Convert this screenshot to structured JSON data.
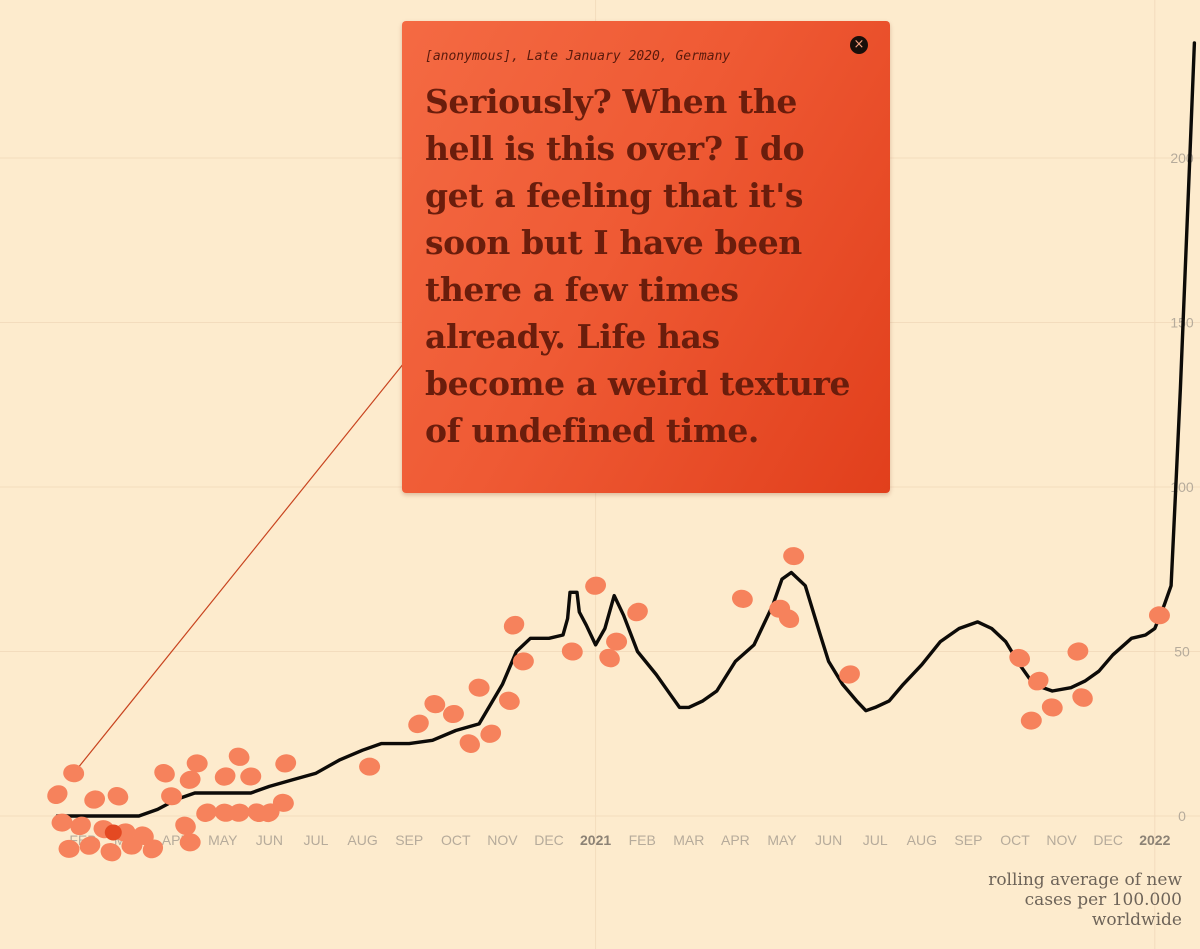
{
  "chart_data": {
    "type": "line",
    "title": "",
    "ylabel": "rolling average of new cases per 100.000 worldwide",
    "caption_lines": [
      "rolling average of new",
      "cases per 100.000",
      "worldwide"
    ],
    "x_ticks": [
      {
        "label": "FEB",
        "bold": false,
        "m": 0
      },
      {
        "label": "MAR",
        "bold": false,
        "m": 1
      },
      {
        "label": "APR",
        "bold": false,
        "m": 2
      },
      {
        "label": "MAY",
        "bold": false,
        "m": 3
      },
      {
        "label": "JUN",
        "bold": false,
        "m": 4
      },
      {
        "label": "JUL",
        "bold": false,
        "m": 5
      },
      {
        "label": "AUG",
        "bold": false,
        "m": 6
      },
      {
        "label": "SEP",
        "bold": false,
        "m": 7
      },
      {
        "label": "OCT",
        "bold": false,
        "m": 8
      },
      {
        "label": "NOV",
        "bold": false,
        "m": 9
      },
      {
        "label": "DEC",
        "bold": false,
        "m": 10
      },
      {
        "label": "2021",
        "bold": true,
        "m": 11
      },
      {
        "label": "FEB",
        "bold": false,
        "m": 12
      },
      {
        "label": "MAR",
        "bold": false,
        "m": 13
      },
      {
        "label": "APR",
        "bold": false,
        "m": 14
      },
      {
        "label": "MAY",
        "bold": false,
        "m": 15
      },
      {
        "label": "JUN",
        "bold": false,
        "m": 16
      },
      {
        "label": "JUL",
        "bold": false,
        "m": 17
      },
      {
        "label": "AUG",
        "bold": false,
        "m": 18
      },
      {
        "label": "SEP",
        "bold": false,
        "m": 19
      },
      {
        "label": "OCT",
        "bold": false,
        "m": 20
      },
      {
        "label": "NOV",
        "bold": false,
        "m": 21
      },
      {
        "label": "DEC",
        "bold": false,
        "m": 22
      },
      {
        "label": "2022",
        "bold": true,
        "m": 23
      }
    ],
    "y_ticks": [
      0,
      50,
      100,
      150,
      200
    ],
    "ylim": [
      0,
      230
    ],
    "series": [
      {
        "name": "rolling average of new cases per 100.000 worldwide",
        "points": [
          [
            -0.55,
            0
          ],
          [
            0.5,
            0
          ],
          [
            1.2,
            0
          ],
          [
            1.6,
            2
          ],
          [
            2.0,
            5
          ],
          [
            2.4,
            7
          ],
          [
            3.0,
            7
          ],
          [
            3.6,
            7
          ],
          [
            4.0,
            9
          ],
          [
            4.5,
            11
          ],
          [
            5.0,
            13
          ],
          [
            5.5,
            17
          ],
          [
            6.0,
            20
          ],
          [
            6.4,
            22
          ],
          [
            7.0,
            22
          ],
          [
            7.5,
            23
          ],
          [
            8.0,
            26
          ],
          [
            8.5,
            28
          ],
          [
            9.0,
            40
          ],
          [
            9.3,
            50
          ],
          [
            9.6,
            54
          ],
          [
            10.0,
            54
          ],
          [
            10.3,
            55
          ],
          [
            10.4,
            60
          ],
          [
            10.45,
            68
          ],
          [
            10.6,
            68
          ],
          [
            10.65,
            62
          ],
          [
            10.8,
            58
          ],
          [
            11.0,
            52
          ],
          [
            11.2,
            57
          ],
          [
            11.4,
            67
          ],
          [
            11.6,
            61
          ],
          [
            11.9,
            50
          ],
          [
            12.3,
            43
          ],
          [
            12.6,
            37
          ],
          [
            12.8,
            33
          ],
          [
            13.0,
            33
          ],
          [
            13.3,
            35
          ],
          [
            13.6,
            38
          ],
          [
            14.0,
            47
          ],
          [
            14.4,
            52
          ],
          [
            14.8,
            64
          ],
          [
            15.0,
            72
          ],
          [
            15.2,
            74
          ],
          [
            15.5,
            70
          ],
          [
            15.8,
            56
          ],
          [
            16.0,
            47
          ],
          [
            16.3,
            40
          ],
          [
            16.6,
            35
          ],
          [
            16.8,
            32
          ],
          [
            17.0,
            33
          ],
          [
            17.3,
            35
          ],
          [
            17.6,
            40
          ],
          [
            18.0,
            46
          ],
          [
            18.4,
            53
          ],
          [
            18.8,
            57
          ],
          [
            19.2,
            59
          ],
          [
            19.5,
            57
          ],
          [
            19.8,
            53
          ],
          [
            20.1,
            46
          ],
          [
            20.4,
            40
          ],
          [
            20.8,
            38
          ],
          [
            21.2,
            39
          ],
          [
            21.5,
            41
          ],
          [
            21.8,
            44
          ],
          [
            22.1,
            49
          ],
          [
            22.5,
            54
          ],
          [
            22.8,
            55
          ],
          [
            23.0,
            57
          ],
          [
            23.2,
            64
          ],
          [
            23.35,
            70
          ],
          [
            23.45,
            100
          ],
          [
            23.55,
            130
          ],
          [
            23.65,
            165
          ],
          [
            23.75,
            200
          ],
          [
            23.85,
            235
          ]
        ]
      }
    ],
    "bubbles": [
      [
        -0.55,
        6.5
      ],
      [
        -0.2,
        13
      ],
      [
        0.25,
        5
      ],
      [
        0.75,
        6
      ],
      [
        -0.45,
        -2
      ],
      [
        -0.05,
        -3
      ],
      [
        0.45,
        -4
      ],
      [
        0.9,
        -5
      ],
      [
        1.3,
        -6
      ],
      [
        -0.3,
        -10
      ],
      [
        0.15,
        -9
      ],
      [
        0.6,
        -11
      ],
      [
        1.05,
        -9
      ],
      [
        1.5,
        -10
      ],
      [
        1.9,
        6
      ],
      [
        2.3,
        11
      ],
      [
        2.2,
        -3
      ],
      [
        2.3,
        -8
      ],
      [
        2.65,
        1
      ],
      [
        3.05,
        1
      ],
      [
        3.35,
        1
      ],
      [
        3.75,
        1
      ],
      [
        2.45,
        16
      ],
      [
        3.05,
        12
      ],
      [
        3.35,
        18
      ],
      [
        3.6,
        12
      ],
      [
        4.0,
        1
      ],
      [
        4.3,
        4
      ],
      [
        4.35,
        16
      ],
      [
        1.75,
        13
      ],
      [
        6.15,
        15
      ],
      [
        7.2,
        28
      ],
      [
        7.55,
        34
      ],
      [
        7.95,
        31
      ],
      [
        8.3,
        22
      ],
      [
        8.5,
        39
      ],
      [
        8.75,
        25
      ],
      [
        9.15,
        35
      ],
      [
        9.45,
        47
      ],
      [
        9.25,
        58
      ],
      [
        10.5,
        50
      ],
      [
        11.0,
        70
      ],
      [
        11.3,
        48
      ],
      [
        11.45,
        53
      ],
      [
        11.9,
        62
      ],
      [
        14.15,
        66
      ],
      [
        14.95,
        63
      ],
      [
        15.15,
        60
      ],
      [
        15.25,
        79
      ],
      [
        16.45,
        43
      ],
      [
        20.1,
        48
      ],
      [
        20.35,
        29
      ],
      [
        20.5,
        41
      ],
      [
        20.8,
        33
      ],
      [
        21.35,
        50
      ],
      [
        21.45,
        36
      ],
      [
        23.1,
        61
      ]
    ],
    "highlight_bubble": [
      0.65,
      -5
    ]
  },
  "quote_card": {
    "meta": "[anonymous], Late January 2020, Germany",
    "text": "Seriously? When the hell is this over? I do get a feeling that it's soon but I have been there a few times already. Life has become a weird texture of undefined time.",
    "close_icon": "×"
  },
  "colors": {
    "line": "#0d0b08",
    "bubble": "#f6825c",
    "highlight": "#e44922",
    "connector": "#c8441f",
    "grid": "#f3dcbd"
  }
}
